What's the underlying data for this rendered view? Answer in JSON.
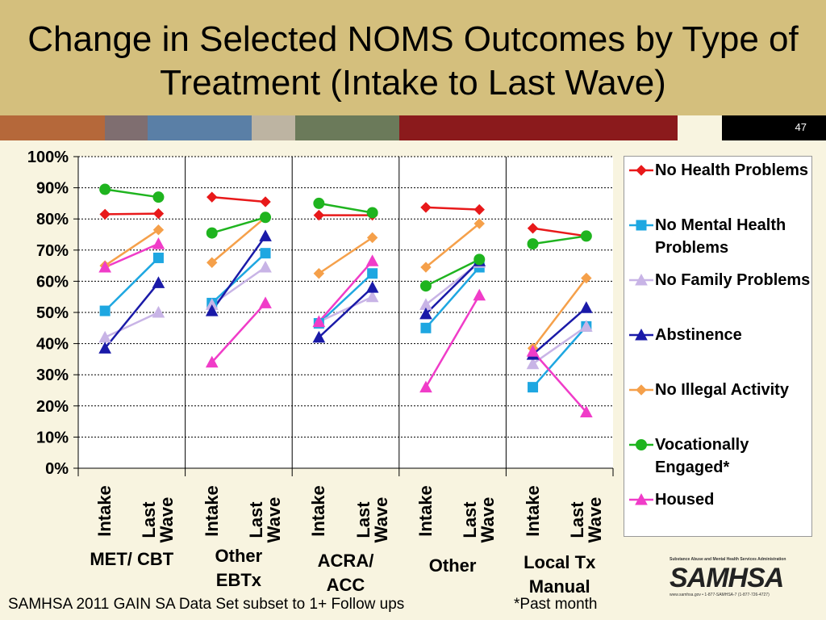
{
  "page_number": "47",
  "footnote": "SAMHSA 2011 GAIN SA Data Set subset to 1+ Follow ups",
  "note": "*Past month",
  "logo": {
    "name": "SAMHSA",
    "tagline": "Substance Abuse and Mental Health Services Administration",
    "contact": "www.samhsa.gov • 1-877-SAMHSA-7 (1-877-726-4727)"
  },
  "chart_data": {
    "type": "line",
    "title": "Change in Selected NOMS Outcomes by Type of Treatment (Intake to Last Wave)",
    "groups": [
      "MET/ CBT",
      "Other EBTx",
      "ACRA/ ACC",
      "Other",
      "Local Tx Manual"
    ],
    "categories": [
      "Intake",
      "Last Wave",
      "Intake",
      "Last Wave",
      "Intake",
      "Last Wave",
      "Intake",
      "Last Wave",
      "Intake",
      "Last Wave"
    ],
    "ylim": [
      0,
      100
    ],
    "yticks": [
      {
        "value": 0,
        "label": "0%"
      },
      {
        "value": 10,
        "label": "10%"
      },
      {
        "value": 20,
        "label": "20%"
      },
      {
        "value": 30,
        "label": "30%"
      },
      {
        "value": 40,
        "label": "40%"
      },
      {
        "value": 50,
        "label": "50%"
      },
      {
        "value": 60,
        "label": "60%"
      },
      {
        "value": 70,
        "label": "70%"
      },
      {
        "value": 80,
        "label": "80%"
      },
      {
        "value": 90,
        "label": "90%"
      },
      {
        "value": 100,
        "label": "100%"
      }
    ],
    "grid": true,
    "legend": "right",
    "series": [
      {
        "name": "No Health Problems",
        "color": "#e8191a",
        "marker": "diamond",
        "values": [
          81.5,
          81.7,
          87,
          85.5,
          81.2,
          81.2,
          83.7,
          83,
          77,
          74.5
        ]
      },
      {
        "name": "No Mental Health Problems",
        "color": "#1ea7e1",
        "marker": "square",
        "values": [
          50.5,
          67.5,
          53,
          69,
          46.5,
          62.5,
          45,
          64.5,
          26,
          45.5
        ]
      },
      {
        "name": "No Family Problems",
        "color": "#c8b4e6",
        "marker": "triangle",
        "values": [
          42,
          50,
          52.5,
          64.5,
          47,
          55,
          52.5,
          66,
          33.5,
          45.5
        ]
      },
      {
        "name": "Abstinence",
        "color": "#1a1aa8",
        "marker": "triangle",
        "values": [
          38.5,
          59.5,
          50.5,
          74.5,
          42,
          58,
          49.5,
          66.5,
          36.5,
          51.5
        ]
      },
      {
        "name": "No Illegal Activity",
        "color": "#f5a04a",
        "marker": "diamond",
        "values": [
          65,
          76.5,
          66,
          80.5,
          62.5,
          74,
          64.5,
          78.5,
          38.5,
          61
        ]
      },
      {
        "name": "Vocationally Engaged*",
        "color": "#1fb41f",
        "marker": "circle",
        "values": [
          89.5,
          87,
          75.5,
          80.5,
          85,
          82,
          58.5,
          67,
          72,
          74.5
        ]
      },
      {
        "name": "Housed",
        "color": "#f03cc8",
        "marker": "triangle",
        "values": [
          64.5,
          72,
          34,
          53,
          47,
          66.5,
          26,
          55.5,
          37.5,
          18
        ]
      }
    ]
  }
}
